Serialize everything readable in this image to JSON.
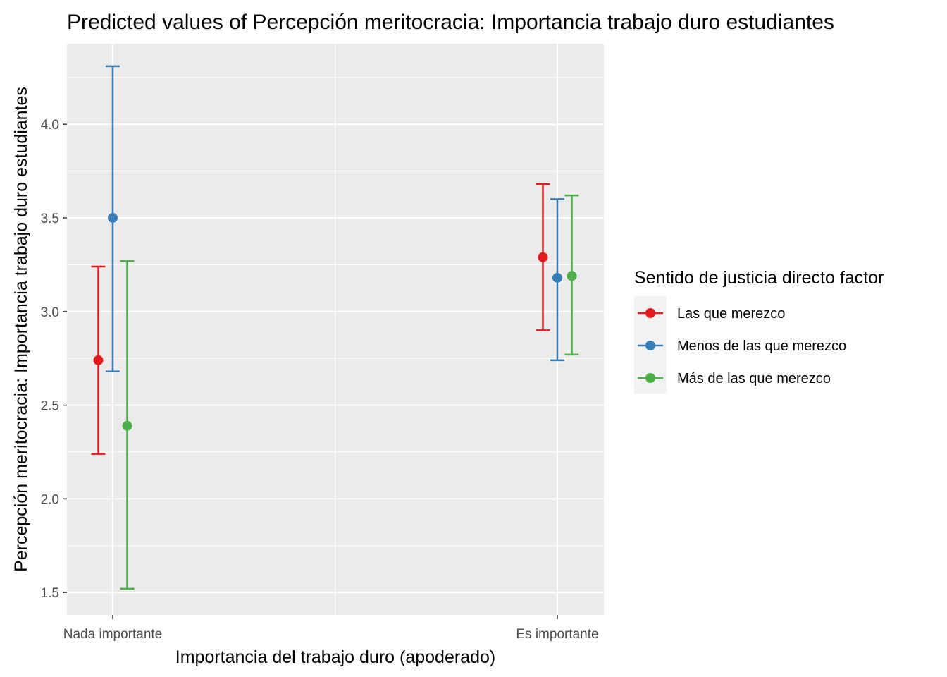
{
  "chart_data": {
    "type": "scatter",
    "title": "Predicted values of Percepción meritocracia: Importancia trabajo duro estudiantes",
    "xlabel": "Importancia del trabajo duro (apoderado)",
    "ylabel": "Percepción meritocracia: Importancia trabajo duro estudiantes",
    "categories": [
      "Nada importante",
      "Es importante"
    ],
    "ylim": [
      1.38,
      4.43
    ],
    "y_ticks": [
      {
        "value": 1.5,
        "label": "1.5"
      },
      {
        "value": 2.0,
        "label": "2.0"
      },
      {
        "value": 2.5,
        "label": "2.5"
      },
      {
        "value": 3.0,
        "label": "3.0"
      },
      {
        "value": 3.5,
        "label": "3.5"
      },
      {
        "value": 4.0,
        "label": "4.0"
      }
    ],
    "grid": true,
    "legend": {
      "title": "Sentido de justicia directo factor",
      "position": "right"
    },
    "series": [
      {
        "name": "Las que merezco",
        "color": "#e41a1c",
        "values": [
          2.74,
          3.29
        ],
        "lower": [
          2.24,
          2.9
        ],
        "upper": [
          3.24,
          3.68
        ]
      },
      {
        "name": "Menos de las que merezco",
        "color": "#377eb8",
        "values": [
          3.5,
          3.18
        ],
        "lower": [
          2.68,
          2.74
        ],
        "upper": [
          4.31,
          3.6
        ]
      },
      {
        "name": "Más de las que merezco",
        "color": "#4daf4a",
        "values": [
          2.39,
          3.19
        ],
        "lower": [
          1.52,
          2.77
        ],
        "upper": [
          3.27,
          3.62
        ]
      }
    ]
  }
}
